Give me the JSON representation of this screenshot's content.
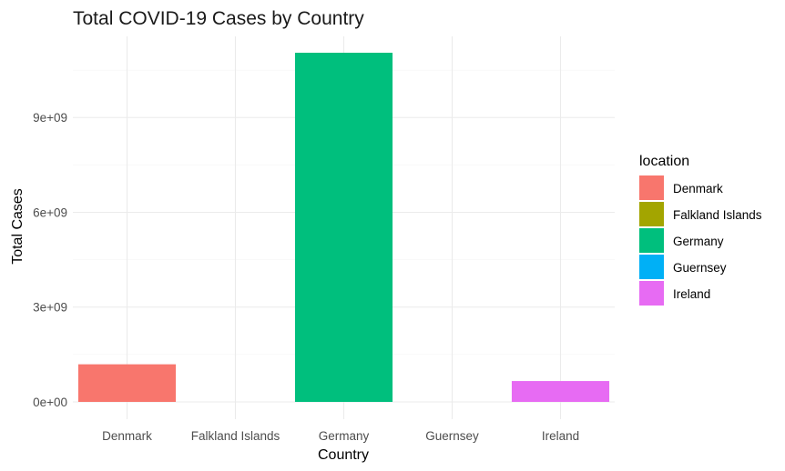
{
  "chart_data": {
    "type": "bar",
    "title": "Total COVID-19 Cases by Country",
    "xlabel": "Country",
    "ylabel": "Total Cases",
    "categories": [
      "Denmark",
      "Falkland Islands",
      "Germany",
      "Guernsey",
      "Ireland"
    ],
    "values": [
      1190000000,
      0,
      11050000000,
      0,
      660000000
    ],
    "colors": [
      "#F8766D",
      "#A3A500",
      "#00BF7D",
      "#00B0F6",
      "#E76BF3"
    ],
    "ylim": [
      0,
      11050000000
    ],
    "yticks": [
      0,
      3000000000,
      6000000000,
      9000000000
    ],
    "ytick_labels": [
      "0e+00",
      "3e+09",
      "6e+09",
      "9e+09"
    ],
    "grid": true,
    "legend": {
      "title": "location",
      "position": "right",
      "entries": [
        "Denmark",
        "Falkland Islands",
        "Germany",
        "Guernsey",
        "Ireland"
      ]
    }
  }
}
